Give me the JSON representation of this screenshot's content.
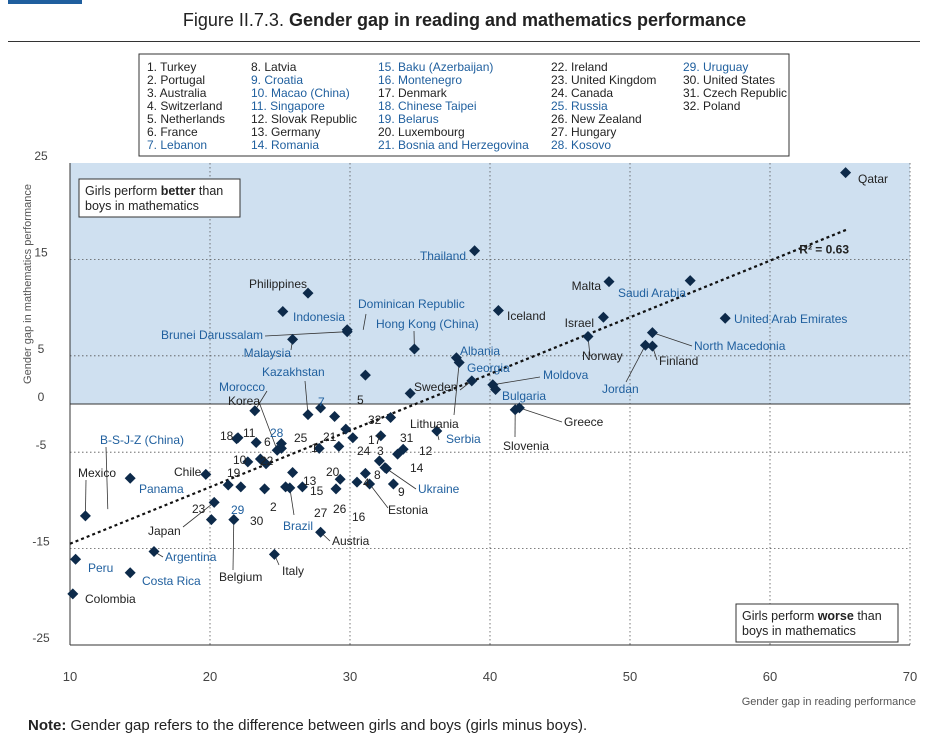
{
  "figure": {
    "title_prefix": "Figure II.7.3.",
    "title_bold": "Gender gap in reading and mathematics performance"
  },
  "note": {
    "label": "Note:",
    "text": "Gender gap refers to the difference between girls and boys (girls minus boys)."
  },
  "colors": {
    "marker": "#0d2a4a",
    "highlight_text": "#1f5f9e",
    "shaded_region": "#cfe0f0",
    "grid": "#555555"
  },
  "legend_key": {
    "columns": [
      [
        {
          "t": "1. Turkey",
          "h": false
        },
        {
          "t": "2. Portugal",
          "h": false
        },
        {
          "t": "3. Australia",
          "h": false
        },
        {
          "t": "4. Switzerland",
          "h": false
        },
        {
          "t": "5. Netherlands",
          "h": false
        },
        {
          "t": "6. France",
          "h": false
        },
        {
          "t": "7. Lebanon",
          "h": true
        }
      ],
      [
        {
          "t": "8. Latvia",
          "h": false
        },
        {
          "t": "9. Croatia",
          "h": true
        },
        {
          "t": "10. Macao (China)",
          "h": true
        },
        {
          "t": "11. Singapore",
          "h": true
        },
        {
          "t": "12. Slovak Republic",
          "h": false
        },
        {
          "t": "13. Germany",
          "h": false
        },
        {
          "t": "14. Romania",
          "h": true
        }
      ],
      [
        {
          "t": "15. Baku (Azerbaijan)",
          "h": true
        },
        {
          "t": "16. Montenegro",
          "h": true
        },
        {
          "t": "17. Denmark",
          "h": false
        },
        {
          "t": "18. Chinese Taipei",
          "h": true
        },
        {
          "t": "19. Belarus",
          "h": true
        },
        {
          "t": "20. Luxembourg",
          "h": false
        },
        {
          "t": "21. Bosnia and Herzegovina",
          "h": true
        }
      ],
      [
        {
          "t": "22. Ireland",
          "h": false
        },
        {
          "t": "23. United Kingdom",
          "h": false
        },
        {
          "t": "24. Canada",
          "h": false
        },
        {
          "t": "25. Russia",
          "h": true
        },
        {
          "t": "26. New Zealand",
          "h": false
        },
        {
          "t": "27. Hungary",
          "h": false
        },
        {
          "t": "28. Kosovo",
          "h": true
        }
      ],
      [
        {
          "t": "29. Uruguay",
          "h": true
        },
        {
          "t": "30. United States",
          "h": false
        },
        {
          "t": "31. Czech Republic",
          "h": false
        },
        {
          "t": "32. Poland",
          "h": false
        }
      ]
    ]
  },
  "chart_data": {
    "type": "scatter",
    "xlabel": "Gender gap in reading performance",
    "ylabel": "Gender gap in mathematics performance",
    "xlim": [
      10,
      70
    ],
    "ylim": [
      -25,
      25
    ],
    "xticks": [
      10,
      20,
      30,
      40,
      50,
      60,
      70
    ],
    "yticks": [
      25,
      15,
      5,
      0,
      -5,
      -15,
      -25
    ],
    "grid": "dotted",
    "shaded_region": {
      "from_y": 0,
      "to_y": 25
    },
    "annotation_better": {
      "pre": "Girls perform ",
      "bold": "better",
      "post": " than",
      "line2": "boys in mathematics"
    },
    "annotation_worse": {
      "pre": "Girls perform ",
      "bold": "worse",
      "post": " than",
      "line2": "boys in mathematics"
    },
    "trendline": {
      "x": [
        10,
        65.5
      ],
      "y": [
        -14.5,
        18.1
      ],
      "label": "R² = 0.63"
    },
    "points": [
      {
        "label": "Qatar",
        "x": 65.4,
        "y": 24.0,
        "h": false
      },
      {
        "label": "Thailand",
        "x": 38.9,
        "y": 15.9,
        "h": true
      },
      {
        "label": "Malta",
        "x": 48.5,
        "y": 12.7,
        "h": false
      },
      {
        "label": "Saudi Arabia",
        "x": 54.3,
        "y": 12.8,
        "h": true
      },
      {
        "label": "Philippines",
        "x": 27.0,
        "y": 11.5,
        "h": false
      },
      {
        "label": "Indonesia",
        "x": 25.2,
        "y": 9.6,
        "h": true
      },
      {
        "label": "Iceland",
        "x": 40.6,
        "y": 9.7,
        "h": false
      },
      {
        "label": "Israel",
        "x": 48.1,
        "y": 9.0,
        "h": false
      },
      {
        "label": "United Arab Emirates",
        "x": 56.8,
        "y": 8.9,
        "h": true
      },
      {
        "label": "Dominican Republic",
        "x": 29.8,
        "y": 7.7,
        "h": true
      },
      {
        "label": "Brunei Darussalam",
        "x": 29.8,
        "y": 7.5,
        "h": true
      },
      {
        "label": "Malaysia",
        "x": 25.9,
        "y": 6.7,
        "h": true
      },
      {
        "label": "Hong Kong (China)",
        "x": 34.6,
        "y": 5.7,
        "h": true
      },
      {
        "label": "Norway",
        "x": 47.0,
        "y": 7.0,
        "h": false
      },
      {
        "label": "North Macedonia",
        "x": 51.6,
        "y": 7.4,
        "h": true
      },
      {
        "label": "Jordan",
        "x": 51.1,
        "y": 6.1,
        "h": true
      },
      {
        "label": "Finland",
        "x": 51.6,
        "y": 6.0,
        "h": false
      },
      {
        "label": "Albania",
        "x": 37.6,
        "y": 4.8,
        "h": true
      },
      {
        "label": "Georgia",
        "x": 37.8,
        "y": 4.3,
        "h": true
      },
      {
        "label": "Kazakhstan",
        "x": 31.1,
        "y": 3.0,
        "h": true
      },
      {
        "label": "Sweden",
        "x": 38.7,
        "y": 2.4,
        "h": false
      },
      {
        "label": "Moldova",
        "x": 40.2,
        "y": 2.0,
        "h": true
      },
      {
        "label": "Bulgaria",
        "x": 40.4,
        "y": 1.5,
        "h": true
      },
      {
        "label": "Lithuania",
        "x": 34.3,
        "y": 1.1,
        "h": false
      },
      {
        "label": "Morocco",
        "x": 23.2,
        "y": -0.7,
        "h": true
      },
      {
        "label": "Korea",
        "x": 27.0,
        "y": -1.1,
        "h": false
      },
      {
        "label": "Greece",
        "x": 42.1,
        "y": -0.4,
        "h": false
      },
      {
        "label": "Slovenia",
        "x": 41.8,
        "y": -0.6,
        "h": false
      },
      {
        "label": "Serbia",
        "x": 36.2,
        "y": -2.8,
        "h": true
      },
      {
        "label": "B-S-J-Z (China)",
        "x": 22.0,
        "y": -3.5,
        "h": true
      },
      {
        "label": "Mexico",
        "x": 11.1,
        "y": -11.6,
        "h": false
      },
      {
        "label": "Chile",
        "x": 19.7,
        "y": -7.3,
        "h": false
      },
      {
        "label": "Panama",
        "x": 14.3,
        "y": -7.7,
        "h": true
      },
      {
        "label": "Japan",
        "x": 20.3,
        "y": -10.2,
        "h": false
      },
      {
        "label": "Peru",
        "x": 10.4,
        "y": -16.1,
        "h": true
      },
      {
        "label": "Argentina",
        "x": 16.0,
        "y": -15.3,
        "h": true
      },
      {
        "label": "Costa Rica",
        "x": 14.3,
        "y": -17.5,
        "h": true
      },
      {
        "label": "Colombia",
        "x": 10.2,
        "y": -19.7,
        "h": false
      },
      {
        "label": "Belgium",
        "x": 21.7,
        "y": -12.0,
        "h": false
      },
      {
        "label": "Italy",
        "x": 24.6,
        "y": -15.6,
        "h": false
      },
      {
        "label": "Brazil",
        "x": 25.7,
        "y": -8.7,
        "h": true
      },
      {
        "label": "Austria",
        "x": 27.9,
        "y": -13.3,
        "h": false
      },
      {
        "label": "Ukraine",
        "x": 32.5,
        "y": -6.6,
        "h": true
      },
      {
        "label": "Estonia",
        "x": 31.4,
        "y": -8.3,
        "h": false
      },
      {
        "label": "1",
        "x": 27.8,
        "y": -4.6,
        "h": false
      },
      {
        "label": "2",
        "x": 23.9,
        "y": -8.8,
        "h": false
      },
      {
        "label": "3",
        "x": 32.1,
        "y": -5.9,
        "h": false
      },
      {
        "label": "4",
        "x": 31.1,
        "y": -7.2,
        "h": false
      },
      {
        "label": "5",
        "x": 28.9,
        "y": -1.3,
        "h": false
      },
      {
        "label": "6",
        "x": 25.1,
        "y": -4.6,
        "h": false
      },
      {
        "label": "7",
        "x": 27.9,
        "y": -0.4,
        "h": true
      },
      {
        "label": "8",
        "x": 32.6,
        "y": -6.7,
        "h": false
      },
      {
        "label": "9",
        "x": 33.1,
        "y": -8.3,
        "h": false
      },
      {
        "label": "10",
        "x": 24.0,
        "y": -6.2,
        "h": false
      },
      {
        "label": "11",
        "x": 23.3,
        "y": -4.0,
        "h": false
      },
      {
        "label": "12",
        "x": 33.8,
        "y": -4.7,
        "h": false
      },
      {
        "label": "13",
        "x": 25.9,
        "y": -7.1,
        "h": false
      },
      {
        "label": "14",
        "x": 33.4,
        "y": -5.2,
        "h": false
      },
      {
        "label": "15",
        "x": 26.6,
        "y": -8.6,
        "h": false
      },
      {
        "label": "16",
        "x": 30.5,
        "y": -8.1,
        "h": false
      },
      {
        "label": "17",
        "x": 30.2,
        "y": -3.5,
        "h": false
      },
      {
        "label": "18",
        "x": 21.9,
        "y": -3.6,
        "h": false
      },
      {
        "label": "19",
        "x": 22.7,
        "y": -6.0,
        "h": false
      },
      {
        "label": "20",
        "x": 29.3,
        "y": -7.8,
        "h": false
      },
      {
        "label": "21",
        "x": 29.7,
        "y": -2.6,
        "h": false
      },
      {
        "label": "22",
        "x": 23.6,
        "y": -5.7,
        "h": false
      },
      {
        "label": "23",
        "x": 20.1,
        "y": -12.0,
        "h": false
      },
      {
        "label": "24",
        "x": 29.2,
        "y": -4.4,
        "h": false
      },
      {
        "label": "25",
        "x": 25.1,
        "y": -4.1,
        "h": false
      },
      {
        "label": "26",
        "x": 29.0,
        "y": -8.8,
        "h": false
      },
      {
        "label": "27",
        "x": 25.4,
        "y": -8.6,
        "h": false
      },
      {
        "label": "28",
        "x": 24.8,
        "y": -4.8,
        "h": true
      },
      {
        "label": "29",
        "x": 21.3,
        "y": -8.4,
        "h": true
      },
      {
        "label": "30",
        "x": 22.2,
        "y": -8.6,
        "h": false
      },
      {
        "label": "31",
        "x": 32.2,
        "y": -3.3,
        "h": false
      },
      {
        "label": "32",
        "x": 32.9,
        "y": -1.4,
        "h": false
      }
    ]
  }
}
